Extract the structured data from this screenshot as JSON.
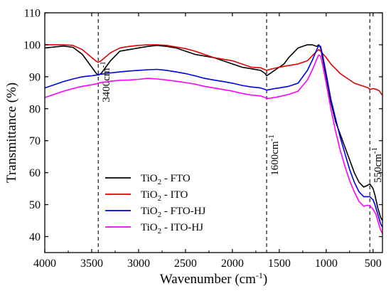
{
  "chart_data": {
    "type": "line",
    "xlabel_main": "Wavenumber (cm",
    "xlabel_sup": "-1",
    "xlabel_tail": ")",
    "ylabel": "Transmittance (%)",
    "xlim": [
      4000,
      400
    ],
    "ylim": [
      35,
      110
    ],
    "x_ticks": [
      4000,
      3500,
      3000,
      2500,
      2000,
      1500,
      1000,
      500
    ],
    "y_ticks": [
      40,
      50,
      60,
      70,
      80,
      90,
      100,
      110
    ],
    "vlines": [
      {
        "x": 3430,
        "label": "3400cm",
        "sup": "-1"
      },
      {
        "x": 1635,
        "label": "1600cm",
        "sup": "-1"
      },
      {
        "x": 535,
        "label": "550cm",
        "sup": "-1"
      }
    ],
    "legend_position": "bottom-left",
    "series": [
      {
        "name_main": "TiO",
        "name_sub": "2",
        "name_tail": " - FTO",
        "color": "#000000",
        "points": [
          [
            4000,
            99
          ],
          [
            3900,
            99.3
          ],
          [
            3800,
            99.6
          ],
          [
            3700,
            99.2
          ],
          [
            3600,
            97
          ],
          [
            3500,
            93
          ],
          [
            3450,
            91
          ],
          [
            3430,
            90.5
          ],
          [
            3400,
            91
          ],
          [
            3300,
            95
          ],
          [
            3200,
            98
          ],
          [
            3100,
            98.5
          ],
          [
            3000,
            99
          ],
          [
            2900,
            99.5
          ],
          [
            2800,
            99.8
          ],
          [
            2700,
            99.5
          ],
          [
            2600,
            99
          ],
          [
            2500,
            98
          ],
          [
            2400,
            97
          ],
          [
            2300,
            96.5
          ],
          [
            2200,
            96
          ],
          [
            2100,
            95
          ],
          [
            2000,
            94
          ],
          [
            1900,
            93
          ],
          [
            1800,
            92.5
          ],
          [
            1700,
            92
          ],
          [
            1650,
            91
          ],
          [
            1635,
            90.3
          ],
          [
            1600,
            91
          ],
          [
            1550,
            92
          ],
          [
            1500,
            93
          ],
          [
            1450,
            94
          ],
          [
            1400,
            96
          ],
          [
            1300,
            99
          ],
          [
            1200,
            100
          ],
          [
            1150,
            100
          ],
          [
            1100,
            99.5
          ],
          [
            1080,
            100
          ],
          [
            1060,
            99
          ],
          [
            1040,
            96
          ],
          [
            1000,
            90
          ],
          [
            950,
            82
          ],
          [
            900,
            76
          ],
          [
            850,
            72
          ],
          [
            800,
            68
          ],
          [
            750,
            64
          ],
          [
            700,
            60
          ],
          [
            650,
            57
          ],
          [
            600,
            55.5
          ],
          [
            560,
            56
          ],
          [
            535,
            56.5
          ],
          [
            500,
            55
          ],
          [
            480,
            53
          ],
          [
            450,
            49
          ],
          [
            420,
            46
          ],
          [
            400,
            45
          ]
        ]
      },
      {
        "name_main": "TiO",
        "name_sub": "2",
        "name_tail": " - ITO",
        "color": "#e00000",
        "points": [
          [
            4000,
            100
          ],
          [
            3900,
            100
          ],
          [
            3800,
            100
          ],
          [
            3700,
            99.8
          ],
          [
            3600,
            98.5
          ],
          [
            3500,
            96
          ],
          [
            3450,
            94.8
          ],
          [
            3430,
            94.5
          ],
          [
            3400,
            95
          ],
          [
            3300,
            97.5
          ],
          [
            3200,
            99
          ],
          [
            3100,
            99.5
          ],
          [
            3000,
            99.8
          ],
          [
            2900,
            100
          ],
          [
            2800,
            100
          ],
          [
            2700,
            99.8
          ],
          [
            2600,
            99.3
          ],
          [
            2500,
            98.8
          ],
          [
            2400,
            98
          ],
          [
            2300,
            97
          ],
          [
            2200,
            96
          ],
          [
            2100,
            95.5
          ],
          [
            2000,
            95
          ],
          [
            1900,
            94
          ],
          [
            1800,
            93
          ],
          [
            1700,
            92.8
          ],
          [
            1650,
            92.2
          ],
          [
            1635,
            92
          ],
          [
            1600,
            92.3
          ],
          [
            1500,
            93
          ],
          [
            1400,
            93.5
          ],
          [
            1300,
            94
          ],
          [
            1200,
            95
          ],
          [
            1150,
            96.5
          ],
          [
            1100,
            98
          ],
          [
            1080,
            98.5
          ],
          [
            1060,
            98
          ],
          [
            1000,
            96
          ],
          [
            950,
            94
          ],
          [
            900,
            92.5
          ],
          [
            850,
            91
          ],
          [
            800,
            90
          ],
          [
            750,
            89
          ],
          [
            700,
            88
          ],
          [
            650,
            87.5
          ],
          [
            600,
            87
          ],
          [
            550,
            86.5
          ],
          [
            535,
            86
          ],
          [
            500,
            86.3
          ],
          [
            460,
            86
          ],
          [
            430,
            85.5
          ],
          [
            410,
            84.5
          ],
          [
            400,
            84.3
          ]
        ]
      },
      {
        "name_main": "TiO",
        "name_sub": "2",
        "name_tail": " - FTO-HJ",
        "color": "#0000e6",
        "points": [
          [
            4000,
            86.5
          ],
          [
            3900,
            87.5
          ],
          [
            3800,
            88.5
          ],
          [
            3700,
            89.3
          ],
          [
            3600,
            90
          ],
          [
            3500,
            90.3
          ],
          [
            3450,
            90.5
          ],
          [
            3430,
            90.7
          ],
          [
            3400,
            90.8
          ],
          [
            3300,
            91.2
          ],
          [
            3200,
            91.5
          ],
          [
            3100,
            91.8
          ],
          [
            3000,
            92
          ],
          [
            2900,
            92.2
          ],
          [
            2800,
            92.3
          ],
          [
            2700,
            92
          ],
          [
            2600,
            91.5
          ],
          [
            2500,
            91
          ],
          [
            2400,
            90.3
          ],
          [
            2300,
            89.5
          ],
          [
            2200,
            89
          ],
          [
            2100,
            88.5
          ],
          [
            2000,
            88
          ],
          [
            1900,
            87.3
          ],
          [
            1800,
            86.8
          ],
          [
            1700,
            86.5
          ],
          [
            1650,
            86
          ],
          [
            1635,
            85.8
          ],
          [
            1600,
            86
          ],
          [
            1550,
            86.3
          ],
          [
            1500,
            86.5
          ],
          [
            1400,
            87
          ],
          [
            1300,
            88
          ],
          [
            1200,
            92
          ],
          [
            1150,
            95
          ],
          [
            1100,
            98.5
          ],
          [
            1080,
            99.8
          ],
          [
            1060,
            99.5
          ],
          [
            1040,
            97
          ],
          [
            1000,
            91
          ],
          [
            950,
            83
          ],
          [
            900,
            77
          ],
          [
            850,
            71
          ],
          [
            800,
            66
          ],
          [
            750,
            61
          ],
          [
            700,
            57
          ],
          [
            650,
            54
          ],
          [
            600,
            52.5
          ],
          [
            560,
            52.5
          ],
          [
            535,
            52.5
          ],
          [
            500,
            51.5
          ],
          [
            480,
            50
          ],
          [
            450,
            47
          ],
          [
            420,
            44
          ],
          [
            400,
            43
          ]
        ]
      },
      {
        "name_main": "TiO",
        "name_sub": "2",
        "name_tail": " - ITO-HJ",
        "color": "#ff00ff",
        "points": [
          [
            4000,
            83.5
          ],
          [
            3900,
            84.5
          ],
          [
            3800,
            85.5
          ],
          [
            3700,
            86.3
          ],
          [
            3600,
            87
          ],
          [
            3500,
            87.5
          ],
          [
            3450,
            87.8
          ],
          [
            3430,
            88
          ],
          [
            3400,
            88.2
          ],
          [
            3300,
            88.6
          ],
          [
            3200,
            88.9
          ],
          [
            3100,
            89
          ],
          [
            3000,
            89.2
          ],
          [
            2900,
            89.5
          ],
          [
            2800,
            89.3
          ],
          [
            2700,
            89
          ],
          [
            2600,
            88.6
          ],
          [
            2500,
            88.2
          ],
          [
            2400,
            87.7
          ],
          [
            2300,
            87
          ],
          [
            2200,
            86.5
          ],
          [
            2100,
            86
          ],
          [
            2000,
            85.5
          ],
          [
            1900,
            84.8
          ],
          [
            1800,
            84.3
          ],
          [
            1700,
            84
          ],
          [
            1650,
            83.5
          ],
          [
            1635,
            83.2
          ],
          [
            1600,
            83.3
          ],
          [
            1550,
            83.5
          ],
          [
            1500,
            83.8
          ],
          [
            1400,
            84.5
          ],
          [
            1300,
            85.5
          ],
          [
            1200,
            89
          ],
          [
            1150,
            92
          ],
          [
            1100,
            95.5
          ],
          [
            1080,
            96.8
          ],
          [
            1060,
            96.5
          ],
          [
            1040,
            94
          ],
          [
            1000,
            88
          ],
          [
            950,
            80
          ],
          [
            900,
            73
          ],
          [
            850,
            67
          ],
          [
            800,
            62
          ],
          [
            750,
            57.5
          ],
          [
            700,
            54
          ],
          [
            650,
            51
          ],
          [
            600,
            49.5
          ],
          [
            560,
            49.8
          ],
          [
            535,
            49.7
          ],
          [
            500,
            48.5
          ],
          [
            470,
            47
          ],
          [
            440,
            44
          ],
          [
            420,
            42
          ],
          [
            400,
            41
          ]
        ]
      }
    ]
  }
}
